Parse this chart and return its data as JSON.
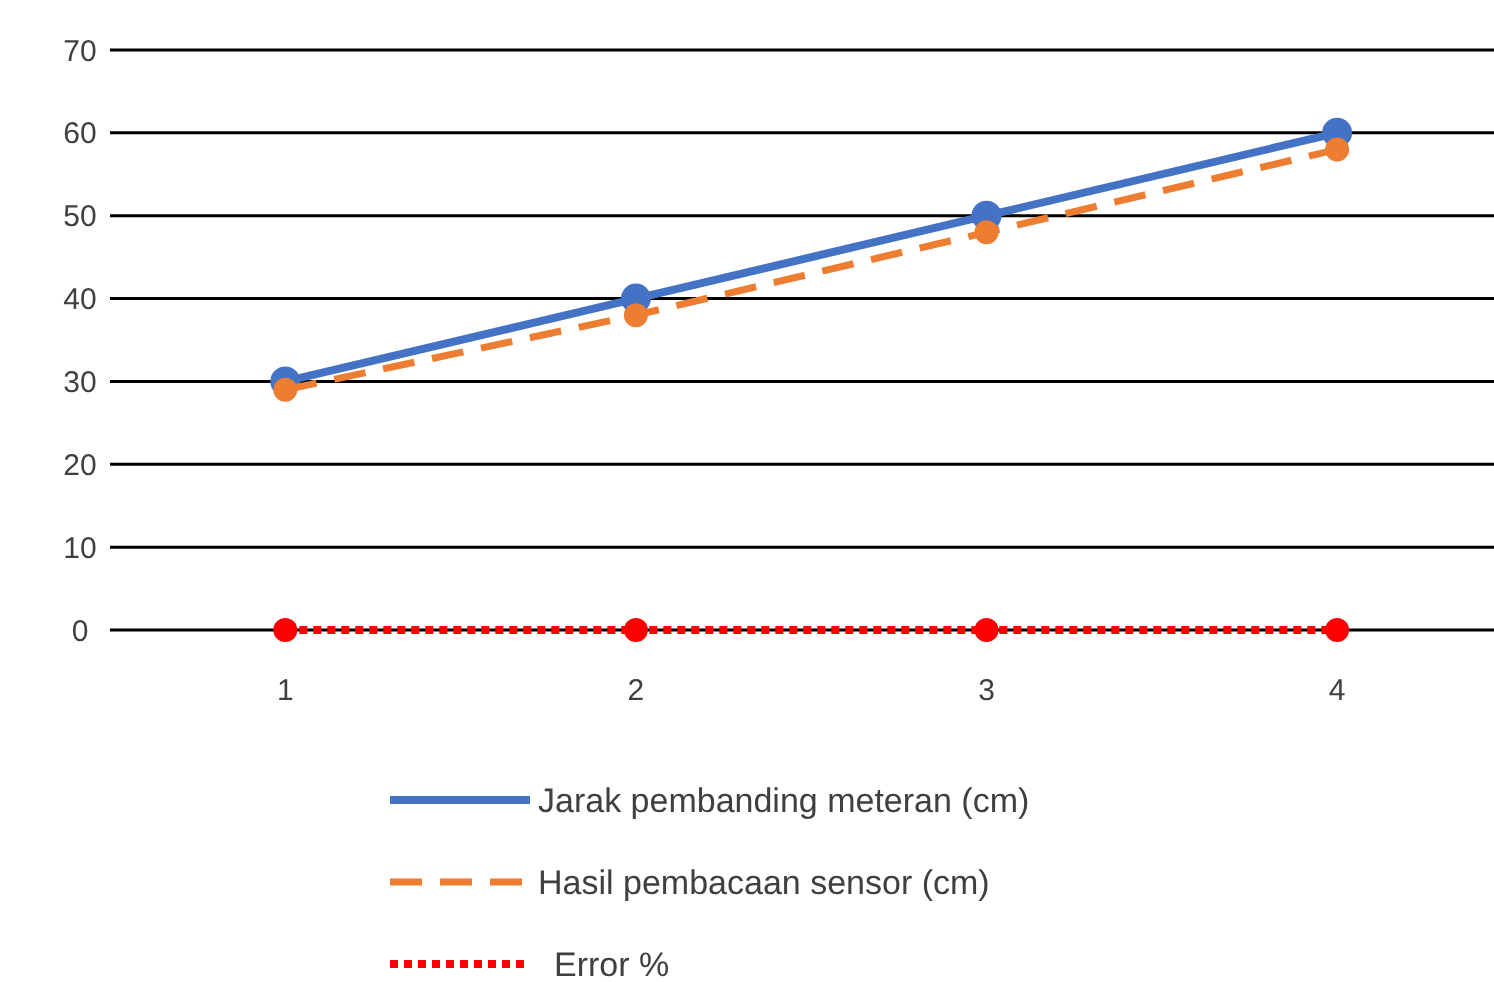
{
  "chart_data": {
    "type": "line",
    "categories": [
      "1",
      "2",
      "3",
      "4"
    ],
    "series": [
      {
        "name": "Jarak pembanding meteran (cm)",
        "color": "#4472c4",
        "values": [
          30,
          40,
          50,
          60
        ],
        "line_style": "solid"
      },
      {
        "name": "Hasil pembacaan sensor (cm)",
        "color": "#ed7d31",
        "values": [
          29,
          38,
          48,
          58
        ],
        "line_style": "dashed"
      },
      {
        "name": "Error %",
        "color": "#ff0000",
        "values": [
          0,
          0,
          0,
          0
        ],
        "line_style": "dotted"
      }
    ],
    "ylim": [
      0,
      70
    ],
    "yticks": [
      0,
      10,
      20,
      30,
      40,
      50,
      60,
      70
    ],
    "grid": "y",
    "legend": "bottom",
    "marker": "circle"
  }
}
